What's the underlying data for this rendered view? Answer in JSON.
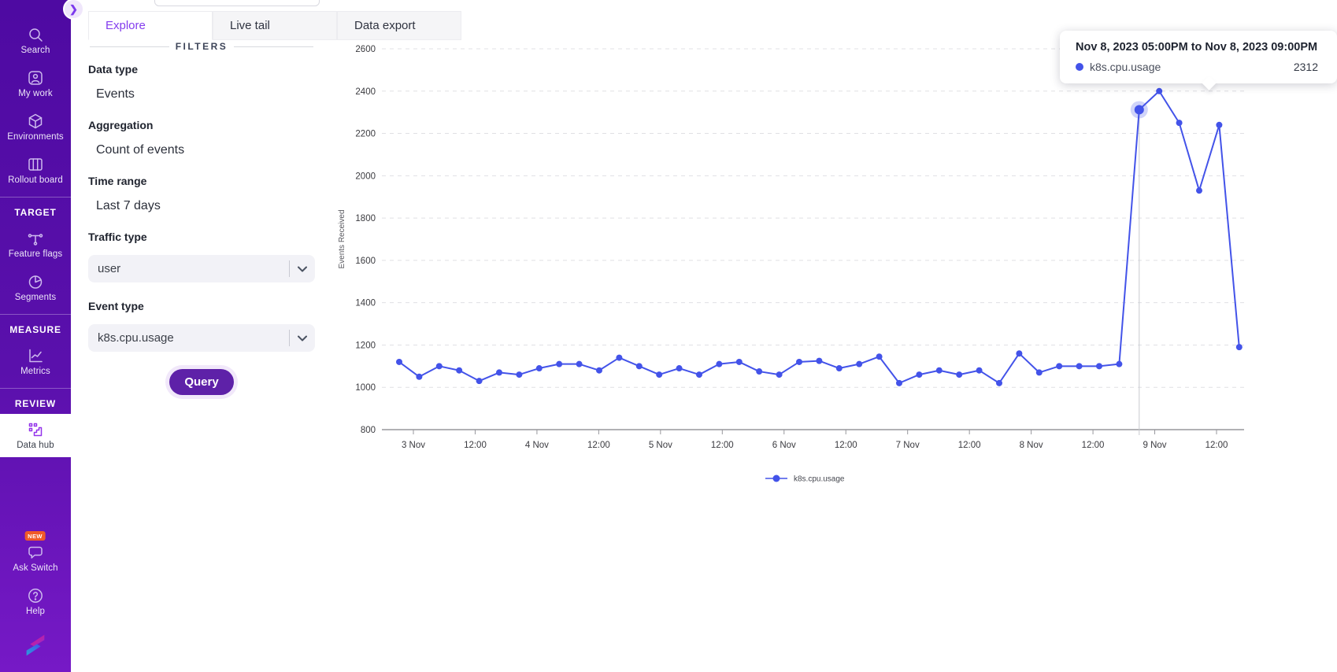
{
  "sidebar": {
    "items": [
      {
        "label": "Search",
        "icon": "search"
      },
      {
        "label": "My work",
        "icon": "user-card"
      },
      {
        "label": "Environments",
        "icon": "cube"
      },
      {
        "label": "Rollout board",
        "icon": "columns"
      }
    ],
    "sections": [
      {
        "header": "TARGET",
        "items": [
          {
            "label": "Feature flags",
            "icon": "branch"
          },
          {
            "label": "Segments",
            "icon": "pie"
          }
        ]
      },
      {
        "header": "MEASURE",
        "items": [
          {
            "label": "Metrics",
            "icon": "chart-line"
          }
        ]
      },
      {
        "header": "REVIEW",
        "items": [
          {
            "label": "Data hub",
            "icon": "data-hub",
            "active": true
          }
        ]
      }
    ],
    "footer_items": [
      {
        "label": "Ask Switch",
        "badge": "NEW",
        "icon": "chat-bubble"
      },
      {
        "label": "Help",
        "icon": "question-circle"
      }
    ]
  },
  "tabs": [
    {
      "label": "Explore",
      "active": true
    },
    {
      "label": "Live tail",
      "active": false
    },
    {
      "label": "Data export",
      "active": false
    }
  ],
  "filters": {
    "heading": "FILTERS",
    "groups": [
      {
        "label": "Data type",
        "value": "Events",
        "type": "text"
      },
      {
        "label": "Aggregation",
        "value": "Count of events",
        "type": "text"
      },
      {
        "label": "Time range",
        "value": "Last 7 days",
        "type": "text"
      },
      {
        "label": "Traffic type",
        "value": "user",
        "type": "select"
      },
      {
        "label": "Event type",
        "value": "k8s.cpu.usage",
        "type": "select"
      }
    ],
    "query_button": "Query"
  },
  "tooltip": {
    "title": "Nov 8, 2023 05:00PM to Nov 8, 2023 09:00PM",
    "series": "k8s.cpu.usage",
    "value": "2312"
  },
  "chart_data": {
    "type": "line",
    "ylabel": "Events Received",
    "xlabel": "",
    "ylim": [
      800,
      2600
    ],
    "y_ticks": [
      800,
      1000,
      1200,
      1400,
      1600,
      1800,
      2000,
      2200,
      2400,
      2600
    ],
    "x_ticks": [
      "3 Nov",
      "12:00",
      "4 Nov",
      "12:00",
      "5 Nov",
      "12:00",
      "6 Nov",
      "12:00",
      "7 Nov",
      "12:00",
      "8 Nov",
      "12:00",
      "9 Nov",
      "12:00"
    ],
    "bucket": "4h",
    "grid": "dashed-horizontal",
    "legend_position": "bottom-center",
    "series": [
      {
        "name": "k8s.cpu.usage",
        "color": "#4353e9",
        "values": [
          1120,
          1050,
          1100,
          1080,
          1030,
          1070,
          1060,
          1090,
          1110,
          1110,
          1080,
          1140,
          1100,
          1060,
          1090,
          1060,
          1110,
          1120,
          1075,
          1060,
          1120,
          1125,
          1090,
          1110,
          1145,
          1020,
          1060,
          1080,
          1060,
          1080,
          1020,
          1160,
          1070,
          1100,
          1100,
          1100,
          1110,
          2312,
          2400,
          2250,
          1930,
          2240,
          1190
        ]
      }
    ],
    "highlight_index": 37,
    "highlight_value": 2312
  },
  "colors": {
    "sidebar_top": "#4e0aa2",
    "sidebar_bottom": "#7619c6",
    "accent_purple": "#843dee",
    "query_button": "#5e21a8",
    "line_series": "#4353e9",
    "new_badge": "#f05a28"
  }
}
